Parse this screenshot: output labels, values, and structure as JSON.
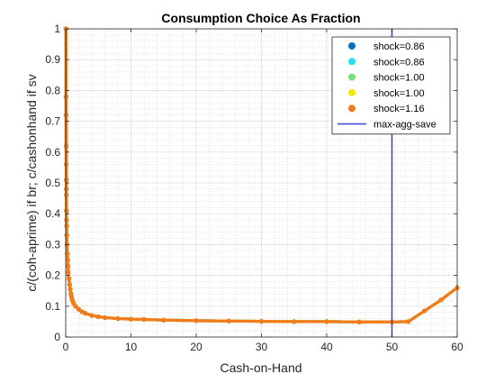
{
  "chart_data": {
    "type": "scatter",
    "title": "Consumption Choice As Fraction",
    "xlabel": "Cash-on-Hand",
    "ylabel": "c/(coh-aprime) if br; c/cashonhand if sv",
    "xlim": [
      0,
      60
    ],
    "ylim": [
      0,
      1
    ],
    "x_ticks": [
      0,
      10,
      20,
      30,
      40,
      50,
      60
    ],
    "y_ticks": [
      0,
      0.1,
      0.2,
      0.3,
      0.4,
      0.5,
      0.6,
      0.7,
      0.8,
      0.9,
      1
    ],
    "x_tick_labels": [
      "0",
      "10",
      "20",
      "30",
      "40",
      "50",
      "60"
    ],
    "y_tick_labels": [
      "0",
      "0.1",
      "0.2",
      "0.3",
      "0.4",
      "0.5",
      "0.6",
      "0.7",
      "0.8",
      "0.9",
      "1"
    ],
    "grid": true,
    "minor_grid": true,
    "legend_position": "top-right",
    "series": [
      {
        "name": "shock=0.86",
        "color": "#0072BD",
        "x": [
          0.04,
          0.05,
          0.06,
          0.07,
          0.08,
          0.09,
          0.1,
          0.11,
          0.12,
          0.13,
          0.15,
          0.17,
          0.2,
          0.25,
          0.3,
          0.35,
          0.4,
          0.5,
          0.6,
          0.7,
          0.8,
          0.9,
          1,
          1.2,
          1.5,
          2,
          2.5,
          3,
          4,
          5,
          6,
          8,
          10,
          12,
          15,
          20,
          25,
          30,
          35,
          40,
          45,
          50,
          52.5,
          55,
          57.5,
          60
        ],
        "y": [
          1.0,
          0.78,
          0.72,
          0.62,
          0.56,
          0.51,
          0.48,
          0.46,
          0.41,
          0.38,
          0.36,
          0.33,
          0.3,
          0.27,
          0.25,
          0.23,
          0.21,
          0.19,
          0.17,
          0.155,
          0.14,
          0.13,
          0.12,
          0.11,
          0.1,
          0.09,
          0.082,
          0.077,
          0.07,
          0.066,
          0.063,
          0.06,
          0.058,
          0.057,
          0.055,
          0.053,
          0.052,
          0.051,
          0.05,
          0.05,
          0.049,
          0.049,
          0.05,
          0.085,
          0.12,
          0.16
        ]
      },
      {
        "name": "shock=0.86",
        "color": "#22E0F0",
        "x": [
          0.04,
          0.05,
          0.06,
          0.07,
          0.08,
          0.09,
          0.1,
          0.11,
          0.12,
          0.13,
          0.15,
          0.17,
          0.2,
          0.25,
          0.3,
          0.35,
          0.4,
          0.5,
          0.6,
          0.7,
          0.8,
          0.9,
          1,
          1.2,
          1.5,
          2,
          2.5,
          3,
          4,
          5,
          6,
          8,
          10,
          12,
          15,
          20,
          25,
          30,
          35,
          40,
          45,
          50,
          52.5,
          55,
          57.5,
          60
        ],
        "y": [
          1.0,
          0.78,
          0.72,
          0.62,
          0.56,
          0.51,
          0.48,
          0.46,
          0.41,
          0.38,
          0.36,
          0.33,
          0.3,
          0.27,
          0.25,
          0.23,
          0.21,
          0.19,
          0.17,
          0.155,
          0.14,
          0.13,
          0.12,
          0.11,
          0.1,
          0.09,
          0.082,
          0.077,
          0.07,
          0.066,
          0.063,
          0.06,
          0.058,
          0.057,
          0.055,
          0.053,
          0.052,
          0.051,
          0.05,
          0.05,
          0.049,
          0.049,
          0.05,
          0.085,
          0.12,
          0.16
        ]
      },
      {
        "name": "shock=1.00",
        "color": "#77E07A",
        "x": [
          0.04,
          0.05,
          0.06,
          0.07,
          0.08,
          0.09,
          0.1,
          0.11,
          0.12,
          0.13,
          0.15,
          0.17,
          0.2,
          0.25,
          0.3,
          0.35,
          0.4,
          0.5,
          0.6,
          0.7,
          0.8,
          0.9,
          1,
          1.2,
          1.5,
          2,
          2.5,
          3,
          4,
          5,
          6,
          8,
          10,
          12,
          15,
          20,
          25,
          30,
          35,
          40,
          45,
          50,
          52.5,
          55,
          57.5,
          60
        ],
        "y": [
          1.0,
          0.78,
          0.72,
          0.62,
          0.56,
          0.51,
          0.48,
          0.46,
          0.41,
          0.38,
          0.36,
          0.33,
          0.3,
          0.27,
          0.25,
          0.23,
          0.21,
          0.19,
          0.17,
          0.155,
          0.14,
          0.13,
          0.12,
          0.11,
          0.1,
          0.09,
          0.082,
          0.077,
          0.07,
          0.066,
          0.063,
          0.06,
          0.058,
          0.057,
          0.055,
          0.053,
          0.052,
          0.051,
          0.05,
          0.05,
          0.049,
          0.049,
          0.05,
          0.085,
          0.12,
          0.16
        ]
      },
      {
        "name": "shock=1.00",
        "color": "#F5E800",
        "x": [
          0.04,
          0.05,
          0.06,
          0.07,
          0.08,
          0.09,
          0.1,
          0.11,
          0.12,
          0.13,
          0.15,
          0.17,
          0.2,
          0.25,
          0.3,
          0.35,
          0.4,
          0.5,
          0.6,
          0.7,
          0.8,
          0.9,
          1,
          1.2,
          1.5,
          2,
          2.5,
          3,
          4,
          5,
          6,
          8,
          10,
          12,
          15,
          20,
          25,
          30,
          35,
          40,
          45,
          50,
          52.5,
          55,
          57.5,
          60
        ],
        "y": [
          1.0,
          0.78,
          0.72,
          0.62,
          0.56,
          0.51,
          0.48,
          0.46,
          0.41,
          0.38,
          0.36,
          0.33,
          0.3,
          0.27,
          0.25,
          0.23,
          0.21,
          0.19,
          0.17,
          0.155,
          0.14,
          0.13,
          0.12,
          0.11,
          0.1,
          0.09,
          0.082,
          0.077,
          0.07,
          0.066,
          0.063,
          0.06,
          0.058,
          0.057,
          0.055,
          0.053,
          0.052,
          0.051,
          0.05,
          0.05,
          0.049,
          0.049,
          0.05,
          0.085,
          0.12,
          0.16
        ]
      },
      {
        "name": "shock=1.16",
        "color": "#F57A1E",
        "x": [
          0.04,
          0.05,
          0.06,
          0.07,
          0.08,
          0.09,
          0.1,
          0.11,
          0.12,
          0.13,
          0.15,
          0.17,
          0.2,
          0.25,
          0.3,
          0.35,
          0.4,
          0.5,
          0.6,
          0.7,
          0.8,
          0.9,
          1,
          1.2,
          1.5,
          2,
          2.5,
          3,
          4,
          5,
          6,
          8,
          10,
          12,
          15,
          20,
          25,
          30,
          35,
          40,
          45,
          50,
          52.5,
          55,
          57.5,
          60
        ],
        "y": [
          1.0,
          0.78,
          0.72,
          0.62,
          0.56,
          0.51,
          0.48,
          0.46,
          0.41,
          0.38,
          0.36,
          0.33,
          0.3,
          0.27,
          0.25,
          0.23,
          0.21,
          0.19,
          0.17,
          0.155,
          0.14,
          0.13,
          0.12,
          0.11,
          0.1,
          0.09,
          0.082,
          0.077,
          0.07,
          0.066,
          0.063,
          0.06,
          0.058,
          0.057,
          0.055,
          0.053,
          0.052,
          0.051,
          0.05,
          0.05,
          0.049,
          0.049,
          0.05,
          0.085,
          0.12,
          0.16
        ]
      }
    ],
    "vertical_lines": [
      {
        "name": "max-agg-save",
        "x": 50,
        "color": "#3D3DDB"
      }
    ]
  }
}
